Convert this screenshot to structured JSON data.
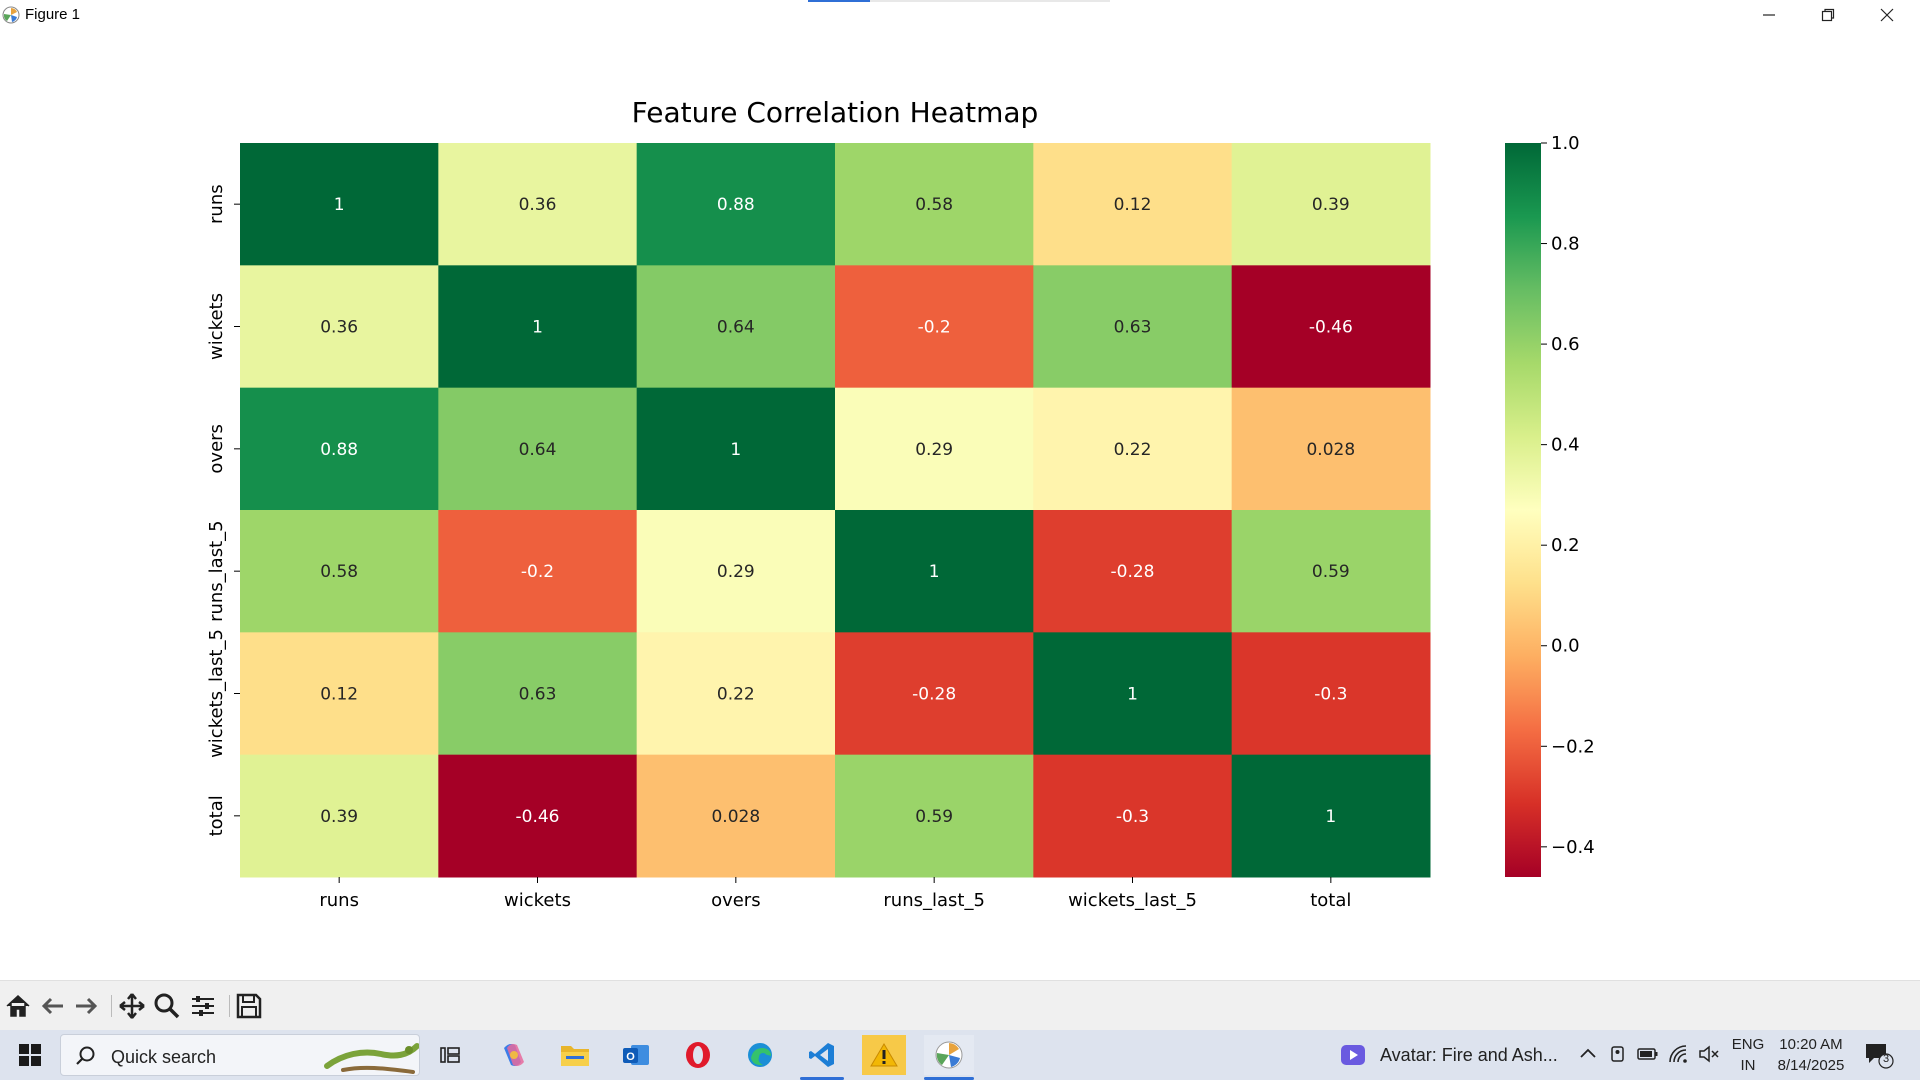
{
  "window": {
    "title": "Figure 1"
  },
  "chart_data": {
    "type": "heatmap",
    "title": "Feature Correlation Heatmap",
    "rows": [
      "runs",
      "wickets",
      "overs",
      "runs_last_5",
      "wickets_last_5",
      "total"
    ],
    "columns": [
      "runs",
      "wickets",
      "overs",
      "runs_last_5",
      "wickets_last_5",
      "total"
    ],
    "values": [
      [
        1,
        0.36,
        0.88,
        0.58,
        0.12,
        0.39
      ],
      [
        0.36,
        1,
        0.64,
        -0.2,
        0.63,
        -0.46
      ],
      [
        0.88,
        0.64,
        1,
        0.29,
        0.22,
        0.028
      ],
      [
        0.58,
        -0.2,
        0.29,
        1,
        -0.28,
        0.59
      ],
      [
        0.12,
        0.63,
        0.22,
        -0.28,
        1,
        -0.3
      ],
      [
        0.39,
        -0.46,
        0.028,
        0.59,
        -0.3,
        1
      ]
    ],
    "labels": [
      [
        "1",
        "0.36",
        "0.88",
        "0.58",
        "0.12",
        "0.39"
      ],
      [
        "0.36",
        "1",
        "0.64",
        "-0.2",
        "0.63",
        "-0.46"
      ],
      [
        "0.88",
        "0.64",
        "1",
        "0.29",
        "0.22",
        "0.028"
      ],
      [
        "0.58",
        "-0.2",
        "0.29",
        "1",
        "-0.28",
        "0.59"
      ],
      [
        "0.12",
        "0.63",
        "0.22",
        "-0.28",
        "1",
        "-0.3"
      ],
      [
        "0.39",
        "-0.46",
        "0.028",
        "0.59",
        "-0.3",
        "1"
      ]
    ],
    "colormap": "RdYlGn",
    "vmin": -0.46,
    "vmax": 1,
    "colorbar_ticks": [
      1.0,
      0.8,
      0.6,
      0.4,
      0.2,
      0.0,
      -0.2,
      -0.4
    ],
    "colorbar_tick_labels": [
      "1.0",
      "0.8",
      "0.6",
      "0.4",
      "0.2",
      "0.0",
      "−0.2",
      "−0.4"
    ]
  },
  "toolbar": {
    "buttons": [
      "home-icon",
      "back-arrow-icon",
      "forward-arrow-icon",
      "pan-icon",
      "zoom-icon",
      "configure-subplots-icon",
      "save-icon"
    ]
  },
  "taskbar": {
    "search_placeholder": "Quick search",
    "media_title": "Avatar: Fire and Ash...",
    "language_line1": "ENG",
    "language_line2": "IN",
    "time": "10:20 AM",
    "date": "8/14/2025",
    "notification_count": "3"
  }
}
